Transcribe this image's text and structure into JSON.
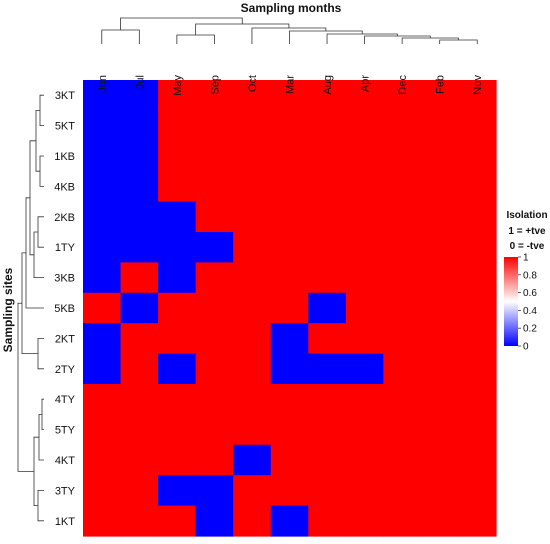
{
  "chart_data": {
    "type": "heatmap",
    "title": "Sampling months",
    "ylabel": "Sampling sites",
    "columns": [
      "Jun",
      "Jul",
      "May",
      "Sep",
      "Oct",
      "Mar",
      "Aug",
      "Apr",
      "Dec",
      "Feb",
      "Nov"
    ],
    "rows": [
      "3KT",
      "5KT",
      "1KB",
      "4KB",
      "2KB",
      "1TY",
      "3KB",
      "5KB",
      "2KT",
      "2TY",
      "4TY",
      "5TY",
      "4KT",
      "3TY",
      "1KT"
    ],
    "values": [
      [
        0,
        0,
        1,
        1,
        1,
        1,
        1,
        1,
        1,
        1,
        1
      ],
      [
        0,
        0,
        1,
        1,
        1,
        1,
        1,
        1,
        1,
        1,
        1
      ],
      [
        0,
        0,
        1,
        1,
        1,
        1,
        1,
        1,
        1,
        1,
        1
      ],
      [
        0,
        0,
        1,
        1,
        1,
        1,
        1,
        1,
        1,
        1,
        1
      ],
      [
        0,
        0,
        0,
        1,
        1,
        1,
        1,
        1,
        1,
        1,
        1
      ],
      [
        0,
        0,
        0,
        0,
        1,
        1,
        1,
        1,
        1,
        1,
        1
      ],
      [
        0,
        1,
        0,
        1,
        1,
        1,
        1,
        1,
        1,
        1,
        1
      ],
      [
        1,
        0,
        1,
        1,
        1,
        1,
        0,
        1,
        1,
        1,
        1
      ],
      [
        0,
        1,
        1,
        1,
        1,
        0,
        1,
        1,
        1,
        1,
        1
      ],
      [
        0,
        1,
        0,
        1,
        1,
        0,
        0,
        0,
        1,
        1,
        1
      ],
      [
        1,
        1,
        1,
        1,
        1,
        1,
        1,
        1,
        1,
        1,
        1
      ],
      [
        1,
        1,
        1,
        1,
        1,
        1,
        1,
        1,
        1,
        1,
        1
      ],
      [
        1,
        1,
        1,
        1,
        0,
        1,
        1,
        1,
        1,
        1,
        1
      ],
      [
        1,
        1,
        0,
        0,
        1,
        1,
        1,
        1,
        1,
        1,
        1
      ],
      [
        1,
        1,
        1,
        0,
        1,
        0,
        1,
        1,
        1,
        1,
        1
      ]
    ],
    "legend": {
      "title": "Isolation",
      "line1": "1 = +tve",
      "line2": "0 = -tve",
      "ticks": [
        "1",
        "0.8",
        "0.6",
        "0.4",
        "0.2",
        "0"
      ],
      "tick_values": [
        1,
        0.8,
        0.6,
        0.4,
        0.2,
        0
      ]
    },
    "colors": {
      "high": "#ff0000",
      "low": "#0000ff",
      "mid": "#ffffff"
    },
    "zlim": [
      0,
      1
    ]
  }
}
